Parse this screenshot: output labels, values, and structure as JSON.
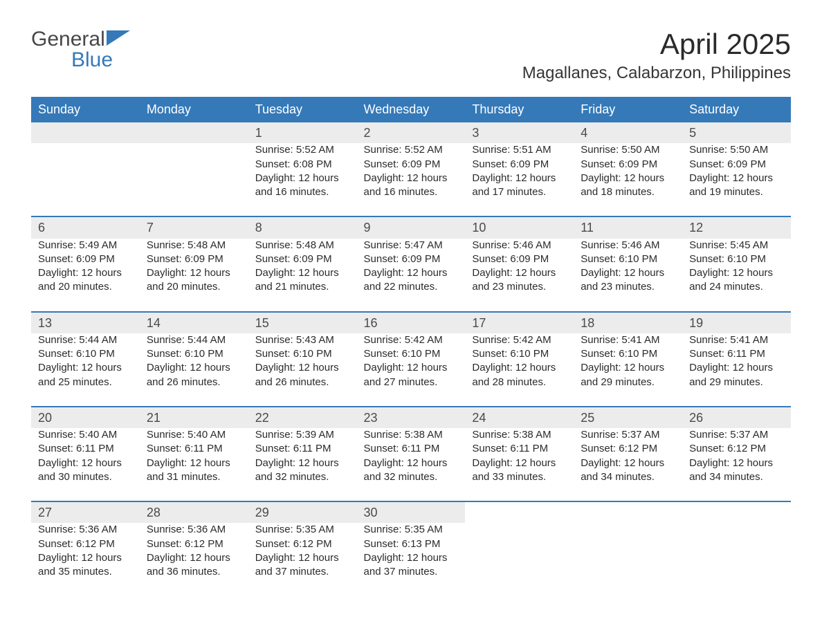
{
  "logo": {
    "text_general": "General",
    "text_blue": "Blue",
    "flag_color": "#3579b8"
  },
  "title": "April 2025",
  "subtitle": "Magallanes, Calabarzon, Philippines",
  "colors": {
    "header_bg": "#3579b8",
    "header_text": "#ffffff",
    "daynum_bg": "#ececec",
    "row_divider": "#3579b8",
    "page_bg": "#ffffff",
    "body_text": "#2b2b2b"
  },
  "typography": {
    "title_fontsize": 42,
    "subtitle_fontsize": 24,
    "header_fontsize": 18,
    "daynum_fontsize": 18,
    "cell_fontsize": 15,
    "font_family": "Segoe UI"
  },
  "days_of_week": [
    "Sunday",
    "Monday",
    "Tuesday",
    "Wednesday",
    "Thursday",
    "Friday",
    "Saturday"
  ],
  "weeks": [
    [
      null,
      null,
      {
        "n": "1",
        "sr": "Sunrise: 5:52 AM",
        "ss": "Sunset: 6:08 PM",
        "dl1": "Daylight: 12 hours",
        "dl2": "and 16 minutes."
      },
      {
        "n": "2",
        "sr": "Sunrise: 5:52 AM",
        "ss": "Sunset: 6:09 PM",
        "dl1": "Daylight: 12 hours",
        "dl2": "and 16 minutes."
      },
      {
        "n": "3",
        "sr": "Sunrise: 5:51 AM",
        "ss": "Sunset: 6:09 PM",
        "dl1": "Daylight: 12 hours",
        "dl2": "and 17 minutes."
      },
      {
        "n": "4",
        "sr": "Sunrise: 5:50 AM",
        "ss": "Sunset: 6:09 PM",
        "dl1": "Daylight: 12 hours",
        "dl2": "and 18 minutes."
      },
      {
        "n": "5",
        "sr": "Sunrise: 5:50 AM",
        "ss": "Sunset: 6:09 PM",
        "dl1": "Daylight: 12 hours",
        "dl2": "and 19 minutes."
      }
    ],
    [
      {
        "n": "6",
        "sr": "Sunrise: 5:49 AM",
        "ss": "Sunset: 6:09 PM",
        "dl1": "Daylight: 12 hours",
        "dl2": "and 20 minutes."
      },
      {
        "n": "7",
        "sr": "Sunrise: 5:48 AM",
        "ss": "Sunset: 6:09 PM",
        "dl1": "Daylight: 12 hours",
        "dl2": "and 20 minutes."
      },
      {
        "n": "8",
        "sr": "Sunrise: 5:48 AM",
        "ss": "Sunset: 6:09 PM",
        "dl1": "Daylight: 12 hours",
        "dl2": "and 21 minutes."
      },
      {
        "n": "9",
        "sr": "Sunrise: 5:47 AM",
        "ss": "Sunset: 6:09 PM",
        "dl1": "Daylight: 12 hours",
        "dl2": "and 22 minutes."
      },
      {
        "n": "10",
        "sr": "Sunrise: 5:46 AM",
        "ss": "Sunset: 6:09 PM",
        "dl1": "Daylight: 12 hours",
        "dl2": "and 23 minutes."
      },
      {
        "n": "11",
        "sr": "Sunrise: 5:46 AM",
        "ss": "Sunset: 6:10 PM",
        "dl1": "Daylight: 12 hours",
        "dl2": "and 23 minutes."
      },
      {
        "n": "12",
        "sr": "Sunrise: 5:45 AM",
        "ss": "Sunset: 6:10 PM",
        "dl1": "Daylight: 12 hours",
        "dl2": "and 24 minutes."
      }
    ],
    [
      {
        "n": "13",
        "sr": "Sunrise: 5:44 AM",
        "ss": "Sunset: 6:10 PM",
        "dl1": "Daylight: 12 hours",
        "dl2": "and 25 minutes."
      },
      {
        "n": "14",
        "sr": "Sunrise: 5:44 AM",
        "ss": "Sunset: 6:10 PM",
        "dl1": "Daylight: 12 hours",
        "dl2": "and 26 minutes."
      },
      {
        "n": "15",
        "sr": "Sunrise: 5:43 AM",
        "ss": "Sunset: 6:10 PM",
        "dl1": "Daylight: 12 hours",
        "dl2": "and 26 minutes."
      },
      {
        "n": "16",
        "sr": "Sunrise: 5:42 AM",
        "ss": "Sunset: 6:10 PM",
        "dl1": "Daylight: 12 hours",
        "dl2": "and 27 minutes."
      },
      {
        "n": "17",
        "sr": "Sunrise: 5:42 AM",
        "ss": "Sunset: 6:10 PM",
        "dl1": "Daylight: 12 hours",
        "dl2": "and 28 minutes."
      },
      {
        "n": "18",
        "sr": "Sunrise: 5:41 AM",
        "ss": "Sunset: 6:10 PM",
        "dl1": "Daylight: 12 hours",
        "dl2": "and 29 minutes."
      },
      {
        "n": "19",
        "sr": "Sunrise: 5:41 AM",
        "ss": "Sunset: 6:11 PM",
        "dl1": "Daylight: 12 hours",
        "dl2": "and 29 minutes."
      }
    ],
    [
      {
        "n": "20",
        "sr": "Sunrise: 5:40 AM",
        "ss": "Sunset: 6:11 PM",
        "dl1": "Daylight: 12 hours",
        "dl2": "and 30 minutes."
      },
      {
        "n": "21",
        "sr": "Sunrise: 5:40 AM",
        "ss": "Sunset: 6:11 PM",
        "dl1": "Daylight: 12 hours",
        "dl2": "and 31 minutes."
      },
      {
        "n": "22",
        "sr": "Sunrise: 5:39 AM",
        "ss": "Sunset: 6:11 PM",
        "dl1": "Daylight: 12 hours",
        "dl2": "and 32 minutes."
      },
      {
        "n": "23",
        "sr": "Sunrise: 5:38 AM",
        "ss": "Sunset: 6:11 PM",
        "dl1": "Daylight: 12 hours",
        "dl2": "and 32 minutes."
      },
      {
        "n": "24",
        "sr": "Sunrise: 5:38 AM",
        "ss": "Sunset: 6:11 PM",
        "dl1": "Daylight: 12 hours",
        "dl2": "and 33 minutes."
      },
      {
        "n": "25",
        "sr": "Sunrise: 5:37 AM",
        "ss": "Sunset: 6:12 PM",
        "dl1": "Daylight: 12 hours",
        "dl2": "and 34 minutes."
      },
      {
        "n": "26",
        "sr": "Sunrise: 5:37 AM",
        "ss": "Sunset: 6:12 PM",
        "dl1": "Daylight: 12 hours",
        "dl2": "and 34 minutes."
      }
    ],
    [
      {
        "n": "27",
        "sr": "Sunrise: 5:36 AM",
        "ss": "Sunset: 6:12 PM",
        "dl1": "Daylight: 12 hours",
        "dl2": "and 35 minutes."
      },
      {
        "n": "28",
        "sr": "Sunrise: 5:36 AM",
        "ss": "Sunset: 6:12 PM",
        "dl1": "Daylight: 12 hours",
        "dl2": "and 36 minutes."
      },
      {
        "n": "29",
        "sr": "Sunrise: 5:35 AM",
        "ss": "Sunset: 6:12 PM",
        "dl1": "Daylight: 12 hours",
        "dl2": "and 37 minutes."
      },
      {
        "n": "30",
        "sr": "Sunrise: 5:35 AM",
        "ss": "Sunset: 6:13 PM",
        "dl1": "Daylight: 12 hours",
        "dl2": "and 37 minutes."
      },
      null,
      null,
      null
    ]
  ]
}
